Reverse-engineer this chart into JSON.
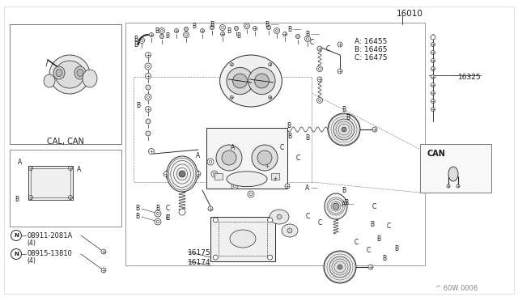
{
  "bg_color": "#ffffff",
  "text_color": "#1a1a1a",
  "line_color": "#2a2a2a",
  "fig_width": 6.4,
  "fig_height": 3.72,
  "part_number_main": "16010",
  "part_16325": "16325",
  "label_A": "A: 16455",
  "label_B": "B: 16465",
  "label_C": "C: 16475",
  "part_16175": "16175",
  "part_16174": "16174",
  "part_08911": "08911-2081A",
  "part_08911_sub": "(4)",
  "part_08915": "08915-13810",
  "part_08915_sub": "(4)",
  "label_cal_can": "CAL, CAN",
  "label_can": "CAN",
  "watermark": "^ 60W 0006"
}
